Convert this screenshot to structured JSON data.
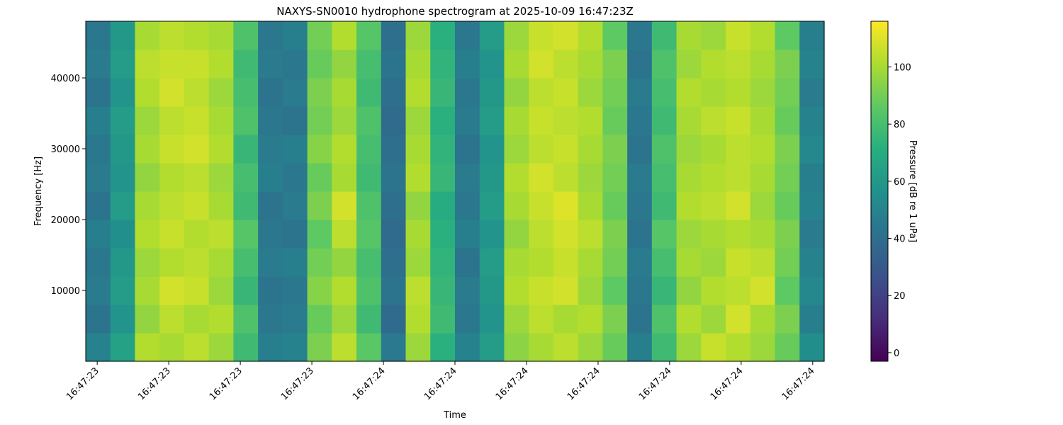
{
  "chart_data": {
    "type": "heatmap",
    "title": "NAXYS-SN0010 hydrophone spectrogram at 2025-10-09 16:47:23Z",
    "xlabel": "Time",
    "ylabel": "Frequency [Hz]",
    "colorbar_label": "Pressure [dB re 1 uPa]",
    "colormap": "viridis",
    "xlim": [
      60443.584,
      60444.616
    ],
    "xticks": [
      {
        "value": 60443.6,
        "label": "16:47:23"
      },
      {
        "value": 60443.7,
        "label": "16:47:23"
      },
      {
        "value": 60443.8,
        "label": "16:47:23"
      },
      {
        "value": 60443.9,
        "label": "16:47:23"
      },
      {
        "value": 60444.0,
        "label": "16:47:24"
      },
      {
        "value": 60444.1,
        "label": "16:47:24"
      },
      {
        "value": 60444.2,
        "label": "16:47:24"
      },
      {
        "value": 60444.3,
        "label": "16:47:24"
      },
      {
        "value": 60444.4,
        "label": "16:47:24"
      },
      {
        "value": 60444.5,
        "label": "16:47:24"
      },
      {
        "value": 60444.6,
        "label": "16:47:24"
      }
    ],
    "ylim": [
      0,
      48000
    ],
    "yticks": [
      10000,
      20000,
      30000,
      40000
    ],
    "clim": [
      -3,
      116
    ],
    "cticks": [
      0,
      20,
      40,
      60,
      80,
      100
    ],
    "z": [
      [
        50,
        65,
        102,
        100,
        104,
        98,
        78,
        48,
        50,
        92,
        104,
        85,
        45,
        98,
        72,
        50,
        62,
        95,
        100,
        104,
        98,
        88,
        48,
        78,
        98,
        106,
        102,
        98,
        88,
        55
      ],
      [
        42,
        58,
        96,
        104,
        100,
        102,
        82,
        44,
        46,
        88,
        98,
        78,
        38,
        102,
        78,
        44,
        58,
        98,
        104,
        100,
        102,
        92,
        42,
        82,
        102,
        98,
        108,
        100,
        92,
        48
      ],
      [
        46,
        62,
        100,
        108,
        106,
        98,
        76,
        42,
        44,
        94,
        102,
        82,
        42,
        104,
        76,
        46,
        60,
        102,
        106,
        108,
        98,
        86,
        44,
        76,
        96,
        102,
        104,
        108,
        86,
        52
      ],
      [
        44,
        60,
        98,
        102,
        104,
        100,
        80,
        46,
        48,
        90,
        96,
        80,
        40,
        98,
        74,
        42,
        62,
        100,
        102,
        106,
        100,
        90,
        46,
        80,
        100,
        98,
        106,
        104,
        90,
        50
      ],
      [
        48,
        56,
        102,
        106,
        102,
        104,
        84,
        44,
        42,
        86,
        104,
        84,
        38,
        100,
        72,
        48,
        58,
        96,
        104,
        108,
        104,
        92,
        42,
        84,
        98,
        100,
        102,
        100,
        92,
        46
      ],
      [
        42,
        62,
        100,
        104,
        106,
        100,
        78,
        42,
        46,
        92,
        108,
        82,
        40,
        96,
        70,
        44,
        62,
        100,
        106,
        110,
        100,
        88,
        44,
        78,
        102,
        104,
        108,
        98,
        88,
        50
      ],
      [
        46,
        58,
        96,
        102,
        104,
        98,
        80,
        48,
        44,
        88,
        100,
        78,
        42,
        102,
        76,
        46,
        60,
        102,
        108,
        104,
        98,
        90,
        46,
        80,
        100,
        102,
        104,
        100,
        90,
        48
      ],
      [
        44,
        60,
        100,
        106,
        108,
        102,
        76,
        46,
        48,
        94,
        102,
        80,
        40,
        100,
        74,
        42,
        58,
        98,
        104,
        106,
        100,
        92,
        42,
        82,
        98,
        100,
        104,
        102,
        92,
        52
      ],
      [
        48,
        62,
        98,
        104,
        106,
        100,
        82,
        44,
        42,
        90,
        98,
        82,
        38,
        98,
        72,
        46,
        62,
        100,
        106,
        104,
        102,
        88,
        44,
        78,
        100,
        104,
        106,
        100,
        88,
        50
      ],
      [
        42,
        58,
        102,
        108,
        104,
        98,
        80,
        42,
        46,
        92,
        100,
        78,
        40,
        102,
        76,
        44,
        60,
        96,
        104,
        106,
        98,
        90,
        46,
        80,
        102,
        100,
        102,
        98,
        90,
        46
      ],
      [
        46,
        62,
        104,
        106,
        106,
        102,
        78,
        46,
        44,
        88,
        96,
        80,
        42,
        100,
        74,
        48,
        58,
        100,
        108,
        104,
        100,
        92,
        42,
        82,
        98,
        102,
        104,
        100,
        92,
        50
      ],
      [
        44,
        60,
        100,
        104,
        102,
        100,
        82,
        44,
        48,
        90,
        102,
        84,
        40,
        98,
        72,
        44,
        62,
        98,
        106,
        108,
        102,
        86,
        44,
        78,
        100,
        98,
        106,
        102,
        86,
        48
      ]
    ]
  }
}
